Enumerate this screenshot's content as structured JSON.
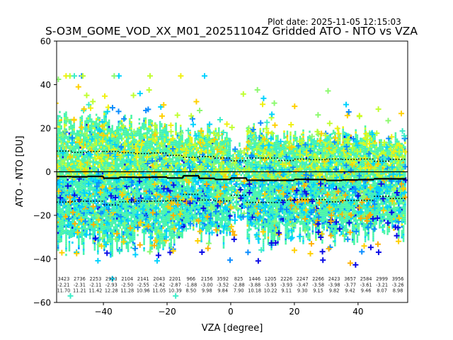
{
  "header": {
    "plot_date": "Plot date: 2025-11-05 12:15:03",
    "title": "S-O3M_GOME_VOD_XX_M01_20251104Z Gridded ATO - NTO vs VZA"
  },
  "colors": {
    "colormap": [
      "#0a0ae6",
      "#0a8cff",
      "#00d2ff",
      "#3ceec8",
      "#4af5a8",
      "#8cfa6e",
      "#c0ff30",
      "#f0f010",
      "#ffd000",
      "#ffb000"
    ],
    "dominant": "#4af5a8",
    "mean_line": "#000000",
    "std_line": "#000000",
    "zero_line": "#000000"
  },
  "chart_data": {
    "type": "scatter",
    "title": "S-O3M_GOME_VOD_XX_M01_20251104Z Gridded ATO - NTO vs VZA",
    "xlabel": "VZA [degree]",
    "ylabel": "ATO - NTO [DU]",
    "xlim": [
      -54.7,
      55.6
    ],
    "ylim": [
      -60,
      60
    ],
    "xticks": [
      -40,
      -20,
      0,
      20,
      40
    ],
    "xtick_labels": [
      "−40",
      "−20",
      "0",
      "20",
      "40"
    ],
    "yticks": [
      -60,
      -40,
      -20,
      0,
      20,
      40,
      60
    ],
    "ytick_labels": [
      "−60",
      "−40",
      "−20",
      "0",
      "20",
      "40",
      "60"
    ],
    "marker": "+",
    "reference_line_y": 0,
    "bin_width": 5,
    "bin_centers": [
      -52.5,
      -47.5,
      -42.5,
      -37.5,
      -32.5,
      -27.5,
      -22.5,
      -17.5,
      -12.5,
      -7.5,
      -2.5,
      2.5,
      7.5,
      12.5,
      17.5,
      22.5,
      27.5,
      32.5,
      37.5,
      42.5,
      47.5,
      52.5
    ],
    "bin_stats": {
      "count": [
        "3423",
        "2736",
        "2253",
        "2923",
        "2104",
        "2141",
        "2043",
        "2201",
        "966",
        "2156",
        "3592",
        "825",
        "1446",
        "1205",
        "2226",
        "2247",
        "2266",
        "2423",
        "3657",
        "2584",
        "2999",
        "3956"
      ],
      "mean": [
        "-2.21",
        "-2.31",
        "-2.11",
        "-2.93",
        "-2.50",
        "-2.55",
        "-2.42",
        "-2.87",
        "-1.88",
        "-3.00",
        "-3.52",
        "-2.88",
        "-3.88",
        "-3.93",
        "-3.93",
        "-3.47",
        "-3.58",
        "-3.98",
        "-3.77",
        "-3.61",
        "-3.21",
        "-3.26"
      ],
      "std": [
        "11.70",
        "11.21",
        "11.42",
        "12.28",
        "11.28",
        "10.96",
        "11.05",
        "10.39",
        "8.50",
        "9.98",
        "9.84",
        "7.90",
        "10.18",
        "10.22",
        "9.11",
        "9.30",
        "9.15",
        "9.82",
        "9.42",
        "9.46",
        "8.07",
        "8.98"
      ]
    },
    "series": [
      {
        "name": "bin mean",
        "style": "solid-step"
      },
      {
        "name": "mean + std",
        "style": "dotted-step"
      },
      {
        "name": "mean - std",
        "style": "dotted-step"
      },
      {
        "name": "gridded ATO - NTO",
        "style": "plus-markers"
      }
    ],
    "point_cloud": {
      "y_core_range": [
        -35,
        25
      ],
      "y_outlier_range": [
        -57,
        44
      ],
      "dense_gap_vza": [
        -2,
        3
      ]
    },
    "grid": false,
    "legend": "none"
  }
}
